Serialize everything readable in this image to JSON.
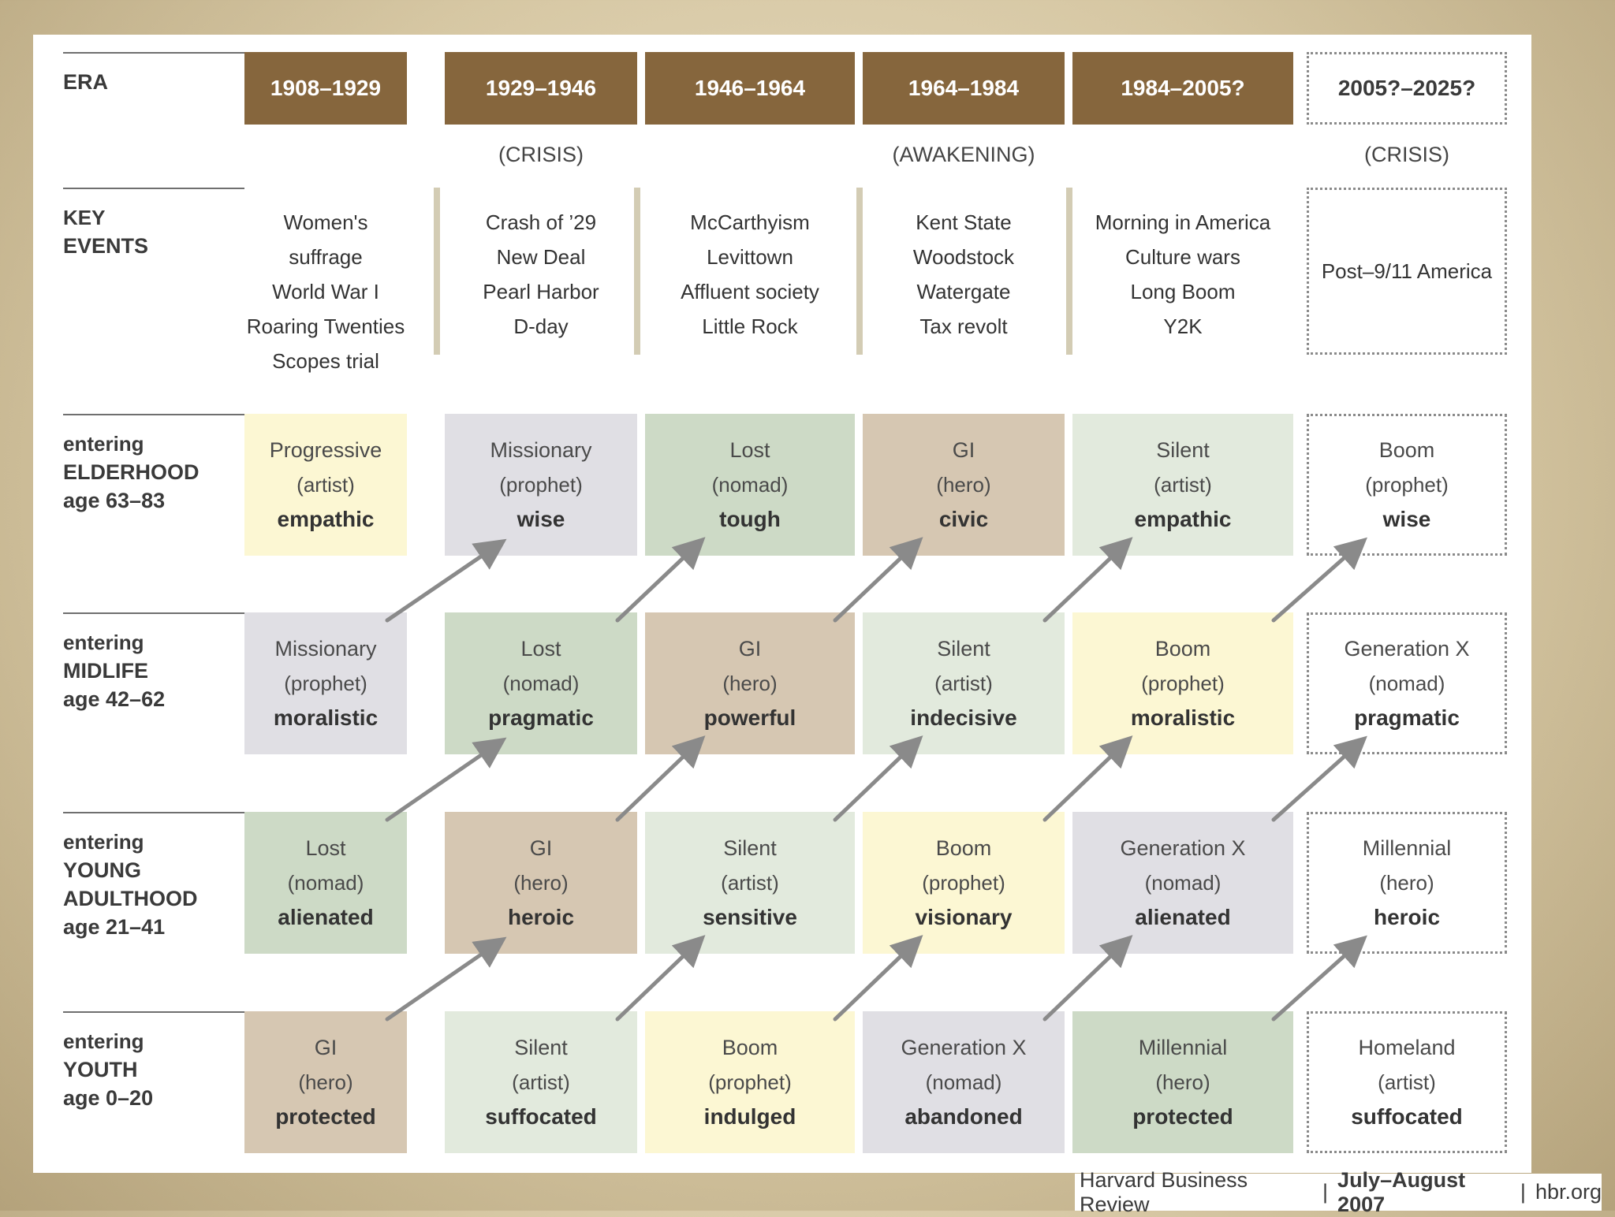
{
  "row_labels": {
    "era": "ERA",
    "key_events": [
      "KEY",
      "EVENTS"
    ],
    "elderhood": [
      "entering",
      "ELDERHOOD",
      "age 63–83"
    ],
    "midlife": [
      "entering",
      "MIDLIFE",
      "age 42–62"
    ],
    "young_adulthood": [
      "entering",
      "YOUNG",
      "ADULTHOOD",
      "age 21–41"
    ],
    "youth": [
      "entering",
      "YOUTH",
      "age 0–20"
    ]
  },
  "eras": [
    {
      "label": "1908–1929",
      "note": "",
      "events": [
        "Women's suffrage",
        "World War I",
        "Roaring Twenties",
        "Scopes trial"
      ]
    },
    {
      "label": "1929–1946",
      "note": "(CRISIS)",
      "events": [
        "Crash of ’29",
        "New Deal",
        "Pearl Harbor",
        "D-day"
      ]
    },
    {
      "label": "1946–1964",
      "note": "",
      "events": [
        "McCarthyism",
        "Levittown",
        "Affluent society",
        "Little Rock"
      ]
    },
    {
      "label": "1964–1984",
      "note": "(AWAKENING)",
      "events": [
        "Kent State",
        "Woodstock",
        "Watergate",
        "Tax revolt"
      ]
    },
    {
      "label": "1984–2005?",
      "note": "",
      "events": [
        "Morning in America",
        "Culture wars",
        "Long Boom",
        "Y2K"
      ]
    },
    {
      "label": "2005?–2025?",
      "note": "(CRISIS)",
      "events": [
        "Post–9/11 America"
      ]
    }
  ],
  "generation_rows": {
    "elderhood": [
      {
        "name": "Progressive",
        "type": "(artist)",
        "trait": "empathic",
        "color": "#fcf7d3"
      },
      {
        "name": "Missionary",
        "type": "(prophet)",
        "trait": "wise",
        "color": "#e0dfe4"
      },
      {
        "name": "Lost",
        "type": "(nomad)",
        "trait": "tough",
        "color": "#cddac6"
      },
      {
        "name": "GI",
        "type": "(hero)",
        "trait": "civic",
        "color": "#d6c7b2"
      },
      {
        "name": "Silent",
        "type": "(artist)",
        "trait": "empathic",
        "color": "#e2eadd"
      },
      {
        "name": "Boom",
        "type": "(prophet)",
        "trait": "wise",
        "color": ""
      }
    ],
    "midlife": [
      {
        "name": "Missionary",
        "type": "(prophet)",
        "trait": "moralistic",
        "color": "#e0dfe4"
      },
      {
        "name": "Lost",
        "type": "(nomad)",
        "trait": "pragmatic",
        "color": "#cddac6"
      },
      {
        "name": "GI",
        "type": "(hero)",
        "trait": "powerful",
        "color": "#d6c7b2"
      },
      {
        "name": "Silent",
        "type": "(artist)",
        "trait": "indecisive",
        "color": "#e2eadd"
      },
      {
        "name": "Boom",
        "type": "(prophet)",
        "trait": "moralistic",
        "color": "#fcf7d3"
      },
      {
        "name": "Generation X",
        "type": "(nomad)",
        "trait": "pragmatic",
        "color": ""
      }
    ],
    "young_adulthood": [
      {
        "name": "Lost",
        "type": "(nomad)",
        "trait": "alienated",
        "color": "#cddac6"
      },
      {
        "name": "GI",
        "type": "(hero)",
        "trait": "heroic",
        "color": "#d6c7b2"
      },
      {
        "name": "Silent",
        "type": "(artist)",
        "trait": "sensitive",
        "color": "#e2eadd"
      },
      {
        "name": "Boom",
        "type": "(prophet)",
        "trait": "visionary",
        "color": "#fcf7d3"
      },
      {
        "name": "Generation X",
        "type": "(nomad)",
        "trait": "alienated",
        "color": "#e0dfe4"
      },
      {
        "name": "Millennial",
        "type": "(hero)",
        "trait": "heroic",
        "color": ""
      }
    ],
    "youth": [
      {
        "name": "GI",
        "type": "(hero)",
        "trait": "protected",
        "color": "#d6c7b2"
      },
      {
        "name": "Silent",
        "type": "(artist)",
        "trait": "suffocated",
        "color": "#e2eadd"
      },
      {
        "name": "Boom",
        "type": "(prophet)",
        "trait": "indulged",
        "color": "#fcf7d3"
      },
      {
        "name": "Generation X",
        "type": "(nomad)",
        "trait": "abandoned",
        "color": "#e0dfe4"
      },
      {
        "name": "Millennial",
        "type": "(hero)",
        "trait": "protected",
        "color": "#cddac6"
      },
      {
        "name": "Homeland",
        "type": "(artist)",
        "trait": "suffocated",
        "color": ""
      }
    ]
  },
  "colors": {
    "era_header": "#86663d",
    "separator": "#d3ccb4",
    "arrow": "#8a8a8a"
  },
  "credit": {
    "publication": "Harvard Business Review",
    "issue": "July–August 2007",
    "site": "hbr.org"
  }
}
